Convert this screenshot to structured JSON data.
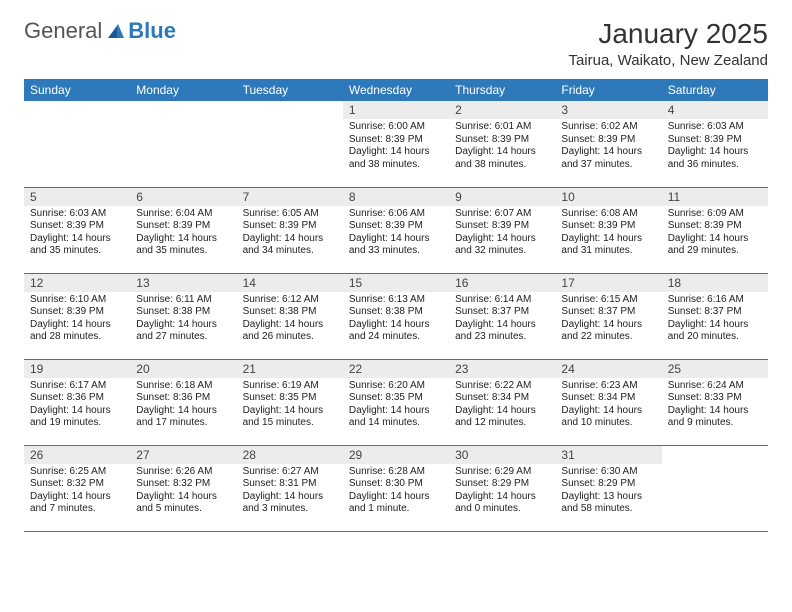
{
  "brand": {
    "general": "General",
    "blue": "Blue"
  },
  "header": {
    "title": "January 2025",
    "location": "Tairua, Waikato, New Zealand"
  },
  "weekdays": [
    "Sunday",
    "Monday",
    "Tuesday",
    "Wednesday",
    "Thursday",
    "Friday",
    "Saturday"
  ],
  "colors": {
    "header_bg": "#2e79b9",
    "daynum_bg": "#ececec",
    "border": "#2e79b9"
  },
  "weeks": [
    [
      {
        "day": "",
        "sunrise": "",
        "sunset": "",
        "daylight": ""
      },
      {
        "day": "",
        "sunrise": "",
        "sunset": "",
        "daylight": ""
      },
      {
        "day": "",
        "sunrise": "",
        "sunset": "",
        "daylight": ""
      },
      {
        "day": "1",
        "sunrise": "Sunrise: 6:00 AM",
        "sunset": "Sunset: 8:39 PM",
        "daylight": "Daylight: 14 hours and 38 minutes."
      },
      {
        "day": "2",
        "sunrise": "Sunrise: 6:01 AM",
        "sunset": "Sunset: 8:39 PM",
        "daylight": "Daylight: 14 hours and 38 minutes."
      },
      {
        "day": "3",
        "sunrise": "Sunrise: 6:02 AM",
        "sunset": "Sunset: 8:39 PM",
        "daylight": "Daylight: 14 hours and 37 minutes."
      },
      {
        "day": "4",
        "sunrise": "Sunrise: 6:03 AM",
        "sunset": "Sunset: 8:39 PM",
        "daylight": "Daylight: 14 hours and 36 minutes."
      }
    ],
    [
      {
        "day": "5",
        "sunrise": "Sunrise: 6:03 AM",
        "sunset": "Sunset: 8:39 PM",
        "daylight": "Daylight: 14 hours and 35 minutes."
      },
      {
        "day": "6",
        "sunrise": "Sunrise: 6:04 AM",
        "sunset": "Sunset: 8:39 PM",
        "daylight": "Daylight: 14 hours and 35 minutes."
      },
      {
        "day": "7",
        "sunrise": "Sunrise: 6:05 AM",
        "sunset": "Sunset: 8:39 PM",
        "daylight": "Daylight: 14 hours and 34 minutes."
      },
      {
        "day": "8",
        "sunrise": "Sunrise: 6:06 AM",
        "sunset": "Sunset: 8:39 PM",
        "daylight": "Daylight: 14 hours and 33 minutes."
      },
      {
        "day": "9",
        "sunrise": "Sunrise: 6:07 AM",
        "sunset": "Sunset: 8:39 PM",
        "daylight": "Daylight: 14 hours and 32 minutes."
      },
      {
        "day": "10",
        "sunrise": "Sunrise: 6:08 AM",
        "sunset": "Sunset: 8:39 PM",
        "daylight": "Daylight: 14 hours and 31 minutes."
      },
      {
        "day": "11",
        "sunrise": "Sunrise: 6:09 AM",
        "sunset": "Sunset: 8:39 PM",
        "daylight": "Daylight: 14 hours and 29 minutes."
      }
    ],
    [
      {
        "day": "12",
        "sunrise": "Sunrise: 6:10 AM",
        "sunset": "Sunset: 8:39 PM",
        "daylight": "Daylight: 14 hours and 28 minutes."
      },
      {
        "day": "13",
        "sunrise": "Sunrise: 6:11 AM",
        "sunset": "Sunset: 8:38 PM",
        "daylight": "Daylight: 14 hours and 27 minutes."
      },
      {
        "day": "14",
        "sunrise": "Sunrise: 6:12 AM",
        "sunset": "Sunset: 8:38 PM",
        "daylight": "Daylight: 14 hours and 26 minutes."
      },
      {
        "day": "15",
        "sunrise": "Sunrise: 6:13 AM",
        "sunset": "Sunset: 8:38 PM",
        "daylight": "Daylight: 14 hours and 24 minutes."
      },
      {
        "day": "16",
        "sunrise": "Sunrise: 6:14 AM",
        "sunset": "Sunset: 8:37 PM",
        "daylight": "Daylight: 14 hours and 23 minutes."
      },
      {
        "day": "17",
        "sunrise": "Sunrise: 6:15 AM",
        "sunset": "Sunset: 8:37 PM",
        "daylight": "Daylight: 14 hours and 22 minutes."
      },
      {
        "day": "18",
        "sunrise": "Sunrise: 6:16 AM",
        "sunset": "Sunset: 8:37 PM",
        "daylight": "Daylight: 14 hours and 20 minutes."
      }
    ],
    [
      {
        "day": "19",
        "sunrise": "Sunrise: 6:17 AM",
        "sunset": "Sunset: 8:36 PM",
        "daylight": "Daylight: 14 hours and 19 minutes."
      },
      {
        "day": "20",
        "sunrise": "Sunrise: 6:18 AM",
        "sunset": "Sunset: 8:36 PM",
        "daylight": "Daylight: 14 hours and 17 minutes."
      },
      {
        "day": "21",
        "sunrise": "Sunrise: 6:19 AM",
        "sunset": "Sunset: 8:35 PM",
        "daylight": "Daylight: 14 hours and 15 minutes."
      },
      {
        "day": "22",
        "sunrise": "Sunrise: 6:20 AM",
        "sunset": "Sunset: 8:35 PM",
        "daylight": "Daylight: 14 hours and 14 minutes."
      },
      {
        "day": "23",
        "sunrise": "Sunrise: 6:22 AM",
        "sunset": "Sunset: 8:34 PM",
        "daylight": "Daylight: 14 hours and 12 minutes."
      },
      {
        "day": "24",
        "sunrise": "Sunrise: 6:23 AM",
        "sunset": "Sunset: 8:34 PM",
        "daylight": "Daylight: 14 hours and 10 minutes."
      },
      {
        "day": "25",
        "sunrise": "Sunrise: 6:24 AM",
        "sunset": "Sunset: 8:33 PM",
        "daylight": "Daylight: 14 hours and 9 minutes."
      }
    ],
    [
      {
        "day": "26",
        "sunrise": "Sunrise: 6:25 AM",
        "sunset": "Sunset: 8:32 PM",
        "daylight": "Daylight: 14 hours and 7 minutes."
      },
      {
        "day": "27",
        "sunrise": "Sunrise: 6:26 AM",
        "sunset": "Sunset: 8:32 PM",
        "daylight": "Daylight: 14 hours and 5 minutes."
      },
      {
        "day": "28",
        "sunrise": "Sunrise: 6:27 AM",
        "sunset": "Sunset: 8:31 PM",
        "daylight": "Daylight: 14 hours and 3 minutes."
      },
      {
        "day": "29",
        "sunrise": "Sunrise: 6:28 AM",
        "sunset": "Sunset: 8:30 PM",
        "daylight": "Daylight: 14 hours and 1 minute."
      },
      {
        "day": "30",
        "sunrise": "Sunrise: 6:29 AM",
        "sunset": "Sunset: 8:29 PM",
        "daylight": "Daylight: 14 hours and 0 minutes."
      },
      {
        "day": "31",
        "sunrise": "Sunrise: 6:30 AM",
        "sunset": "Sunset: 8:29 PM",
        "daylight": "Daylight: 13 hours and 58 minutes."
      },
      {
        "day": "",
        "sunrise": "",
        "sunset": "",
        "daylight": ""
      }
    ]
  ]
}
